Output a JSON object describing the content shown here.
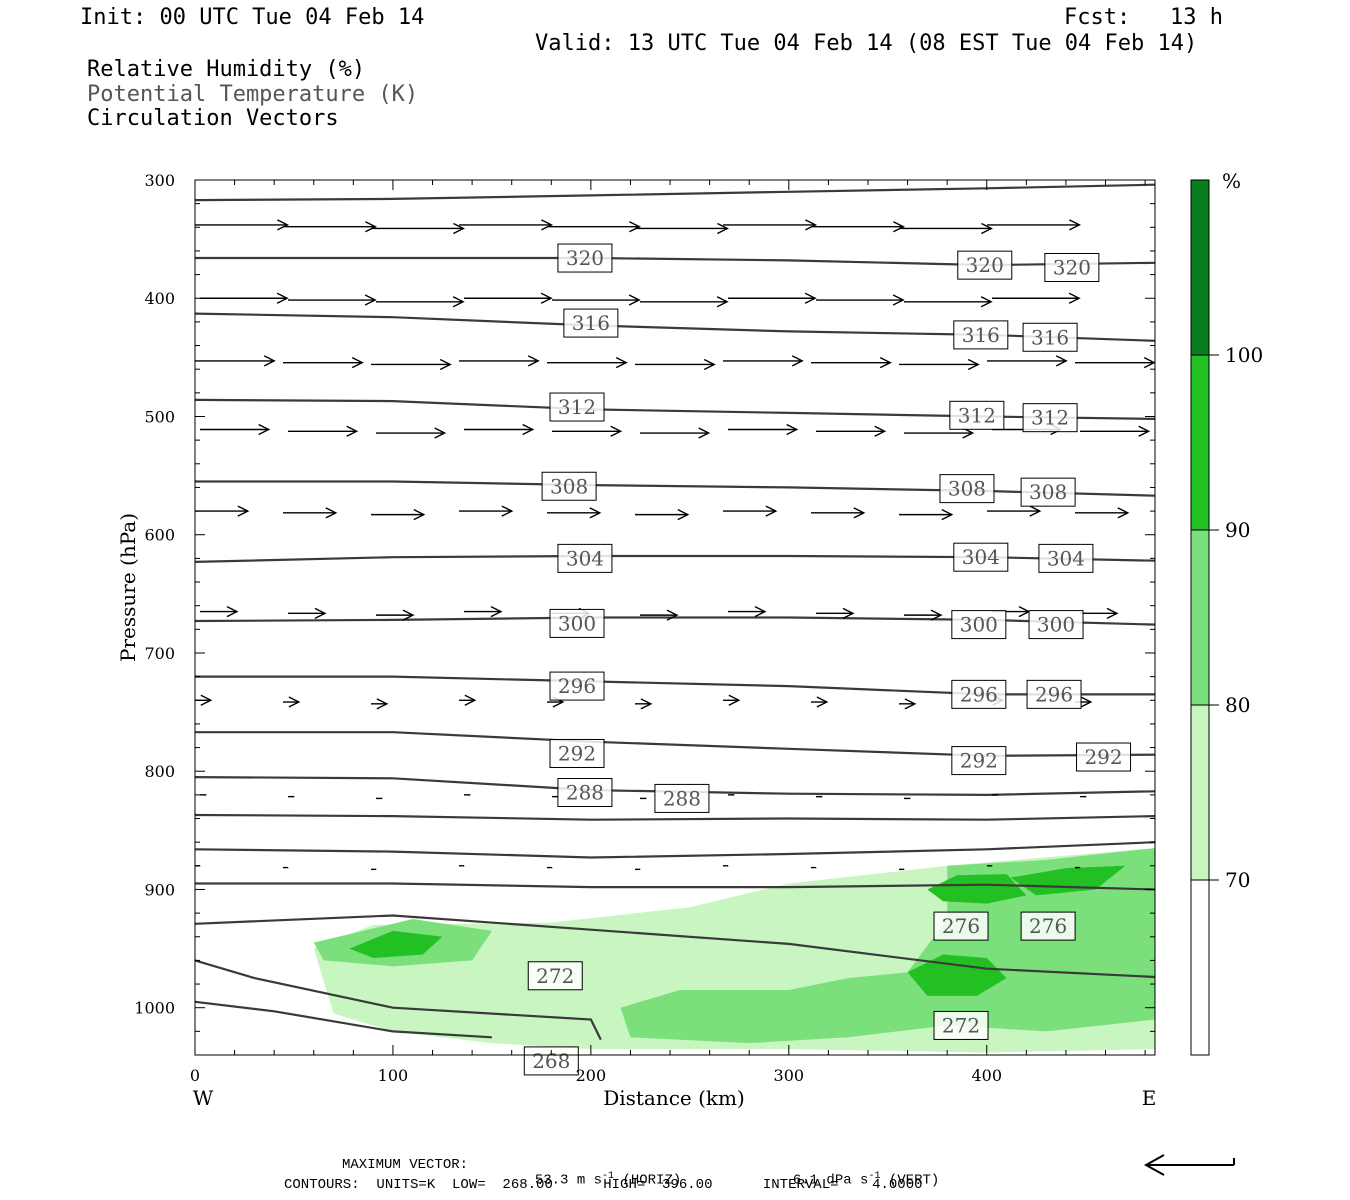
{
  "header": {
    "init": "Init: 00 UTC Tue 04 Feb 14",
    "fcst": "Fcst:   13 h",
    "valid": "Valid: 13 UTC Tue 04 Feb 14 (08 EST Tue 04 Feb 14)",
    "fields": [
      "Relative Humidity (%)",
      "Potential Temperature (K)",
      "Circulation Vectors"
    ]
  },
  "footer": {
    "max_vector_label": "MAXIMUM VECTOR:",
    "horiz": "53.3 m s",
    "horiz_unit": "(HORIZ)",
    "vert": "6.1 dPa s",
    "vert_unit": "(VERT)",
    "exp": "-1",
    "contours": "CONTOURS:  UNITS=K  LOW=  268.00      HIGH=  396.00      INTERVAL=    4.0000"
  },
  "colors": {
    "rh_70_80": "#c8f5c0",
    "rh_80_90": "#7be07b",
    "rh_90_100": "#22c022",
    "rh_100": "#0a7d1e",
    "contour": "#3a3a3a"
  },
  "chart_data": {
    "type": "contour-cross-section",
    "xlabel": "Distance (km)",
    "ylabel": "Pressure (hPa)",
    "xlim": [
      0,
      485
    ],
    "ylim": [
      1040,
      300
    ],
    "xticks": [
      "0",
      "100",
      "200",
      "300",
      "400"
    ],
    "xtick_values": [
      0,
      100,
      200,
      300,
      400
    ],
    "yticks": [
      "300",
      "400",
      "500",
      "600",
      "700",
      "800",
      "900",
      "1000"
    ],
    "ytick_values": [
      300,
      400,
      500,
      600,
      700,
      800,
      900,
      1000
    ],
    "west_label": "W",
    "east_label": "E",
    "colorbar": {
      "unit": "%",
      "levels": [
        "70",
        "80",
        "90",
        "100"
      ],
      "level_values": [
        70,
        80,
        90,
        100
      ]
    },
    "theta_contours": [
      {
        "level": 320,
        "labels": [
          {
            "text": "320",
            "x": 197,
            "p": 366
          },
          {
            "text": "320",
            "x": 399,
            "p": 372
          },
          {
            "text": "320",
            "x": 443,
            "p": 374
          }
        ]
      },
      {
        "level": 316,
        "labels": [
          {
            "text": "316",
            "x": 200,
            "p": 421
          },
          {
            "text": "316",
            "x": 397,
            "p": 431
          },
          {
            "text": "316",
            "x": 432,
            "p": 433
          }
        ]
      },
      {
        "level": 312,
        "labels": [
          {
            "text": "312",
            "x": 193,
            "p": 492
          },
          {
            "text": "312",
            "x": 395,
            "p": 499
          },
          {
            "text": "312",
            "x": 432,
            "p": 501
          }
        ]
      },
      {
        "level": 308,
        "labels": [
          {
            "text": "308",
            "x": 189,
            "p": 559
          },
          {
            "text": "308",
            "x": 390,
            "p": 561
          },
          {
            "text": "308",
            "x": 431,
            "p": 564
          }
        ]
      },
      {
        "level": 304,
        "labels": [
          {
            "text": "304",
            "x": 197,
            "p": 620
          },
          {
            "text": "304",
            "x": 397,
            "p": 619
          },
          {
            "text": "304",
            "x": 440,
            "p": 620
          }
        ]
      },
      {
        "level": 300,
        "labels": [
          {
            "text": "300",
            "x": 193,
            "p": 675
          },
          {
            "text": "300",
            "x": 396,
            "p": 676
          },
          {
            "text": "300",
            "x": 435,
            "p": 676
          }
        ]
      },
      {
        "level": 296,
        "labels": [
          {
            "text": "296",
            "x": 193,
            "p": 728
          },
          {
            "text": "296",
            "x": 396,
            "p": 735
          },
          {
            "text": "296",
            "x": 434,
            "p": 735
          }
        ]
      },
      {
        "level": 292,
        "labels": [
          {
            "text": "292",
            "x": 193,
            "p": 785
          },
          {
            "text": "292",
            "x": 396,
            "p": 791
          },
          {
            "text": "292",
            "x": 459,
            "p": 788
          }
        ]
      },
      {
        "level": 288,
        "labels": [
          {
            "text": "288",
            "x": 197,
            "p": 818
          },
          {
            "text": "288",
            "x": 246,
            "p": 823
          }
        ]
      },
      {
        "level": 276,
        "labels": [
          {
            "text": "276",
            "x": 387,
            "p": 931
          },
          {
            "text": "276",
            "x": 431,
            "p": 931
          }
        ]
      },
      {
        "level": 272,
        "labels": [
          {
            "text": "272",
            "x": 182,
            "p": 973
          },
          {
            "text": "272",
            "x": 387,
            "p": 1015
          }
        ]
      },
      {
        "level": 268,
        "labels": [
          {
            "text": "268",
            "x": 180,
            "p": 1045
          }
        ]
      }
    ],
    "contour_lines_p": [
      [
        [
          0,
          317
        ],
        [
          100,
          316
        ],
        [
          200,
          313
        ],
        [
          300,
          310
        ],
        [
          400,
          307
        ],
        [
          485,
          304
        ]
      ],
      [
        [
          0,
          366
        ],
        [
          100,
          366
        ],
        [
          200,
          366
        ],
        [
          300,
          368
        ],
        [
          400,
          372
        ],
        [
          485,
          370
        ]
      ],
      [
        [
          0,
          413
        ],
        [
          100,
          416
        ],
        [
          200,
          423
        ],
        [
          300,
          428
        ],
        [
          400,
          431
        ],
        [
          485,
          436
        ]
      ],
      [
        [
          0,
          486
        ],
        [
          100,
          487
        ],
        [
          200,
          494
        ],
        [
          300,
          497
        ],
        [
          400,
          500
        ],
        [
          485,
          502
        ]
      ],
      [
        [
          0,
          555
        ],
        [
          100,
          555
        ],
        [
          200,
          558
        ],
        [
          300,
          560
        ],
        [
          400,
          563
        ],
        [
          485,
          567
        ]
      ],
      [
        [
          0,
          623
        ],
        [
          100,
          619
        ],
        [
          200,
          618
        ],
        [
          300,
          618
        ],
        [
          400,
          619
        ],
        [
          485,
          622
        ]
      ],
      [
        [
          0,
          673
        ],
        [
          100,
          672
        ],
        [
          200,
          670
        ],
        [
          300,
          670
        ],
        [
          400,
          672
        ],
        [
          485,
          676
        ]
      ],
      [
        [
          0,
          720
        ],
        [
          100,
          720
        ],
        [
          200,
          724
        ],
        [
          300,
          728
        ],
        [
          400,
          735
        ],
        [
          485,
          735
        ]
      ],
      [
        [
          0,
          767
        ],
        [
          100,
          767
        ],
        [
          200,
          775
        ],
        [
          300,
          781
        ],
        [
          400,
          787
        ],
        [
          485,
          786
        ]
      ],
      [
        [
          0,
          805
        ],
        [
          100,
          806
        ],
        [
          200,
          816
        ],
        [
          300,
          819
        ],
        [
          400,
          820
        ],
        [
          485,
          817
        ]
      ],
      [
        [
          0,
          837
        ],
        [
          100,
          838
        ],
        [
          200,
          841
        ],
        [
          300,
          840
        ],
        [
          400,
          841
        ],
        [
          485,
          838
        ]
      ],
      [
        [
          0,
          866
        ],
        [
          100,
          868
        ],
        [
          200,
          873
        ],
        [
          300,
          870
        ],
        [
          400,
          866
        ],
        [
          485,
          860
        ]
      ],
      [
        [
          0,
          895
        ],
        [
          100,
          895
        ],
        [
          200,
          898
        ],
        [
          300,
          898
        ],
        [
          400,
          896
        ],
        [
          485,
          900
        ]
      ],
      [
        [
          0,
          929
        ],
        [
          100,
          922
        ],
        [
          200,
          934
        ],
        [
          300,
          946
        ],
        [
          400,
          967
        ],
        [
          485,
          974
        ]
      ],
      [
        [
          0,
          960
        ],
        [
          30,
          975
        ],
        [
          100,
          1000
        ],
        [
          200,
          1010
        ],
        [
          205,
          1027
        ]
      ],
      [
        [
          0,
          995
        ],
        [
          40,
          1003
        ],
        [
          100,
          1020
        ],
        [
          150,
          1025
        ]
      ]
    ],
    "arrow_rows_p": [
      338,
      400,
      453,
      511,
      580,
      665,
      740,
      820,
      880
    ],
    "max_vector_horiz_ms": 53.3,
    "max_vector_vert_dPas": 6.1,
    "contour_low": 268.0,
    "contour_high": 396.0,
    "contour_interval": 4.0
  }
}
